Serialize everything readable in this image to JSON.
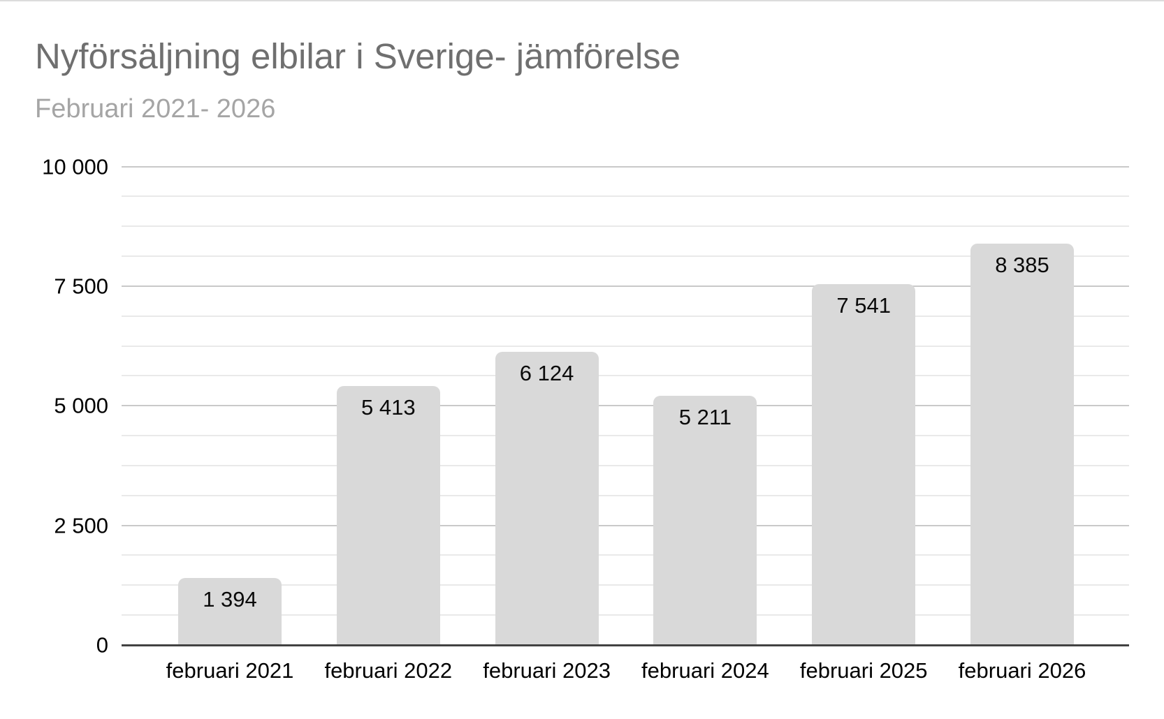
{
  "header": {
    "title": "Nyförsäljning elbilar i Sverige- jämförelse",
    "subtitle": "Februari 2021- 2026"
  },
  "chart_data": {
    "type": "bar",
    "title": "Nyförsäljning elbilar i Sverige- jämförelse",
    "subtitle": "Februari 2021- 2026",
    "categories": [
      "februari 2021",
      "februari 2022",
      "februari 2023",
      "februari 2024",
      "februari 2025",
      "februari 2026"
    ],
    "values": [
      1394,
      5413,
      6124,
      5211,
      7541,
      8385
    ],
    "value_labels": [
      "1 394",
      "5 413",
      "6 124",
      "5 211",
      "7 541",
      "8 385"
    ],
    "xlabel": "",
    "ylabel": "",
    "ylim": [
      0,
      10000
    ],
    "y_major_step": 2500,
    "y_minor_step": 625,
    "y_tick_labels": [
      "0",
      "2 500",
      "5 000",
      "7 500",
      "10 000"
    ],
    "grid": "horizontal-only",
    "legend_position": "none",
    "colors": {
      "bar_fill": "#d9d9d9",
      "major_gridline": "#c9c9c9",
      "minor_gridline": "#e9e9e9",
      "axis_line": "#424242",
      "title_text": "#6f6f6f",
      "subtitle_text": "#a5a5a5",
      "tick_text": "#000000",
      "value_text": "#0a0a0a"
    }
  }
}
